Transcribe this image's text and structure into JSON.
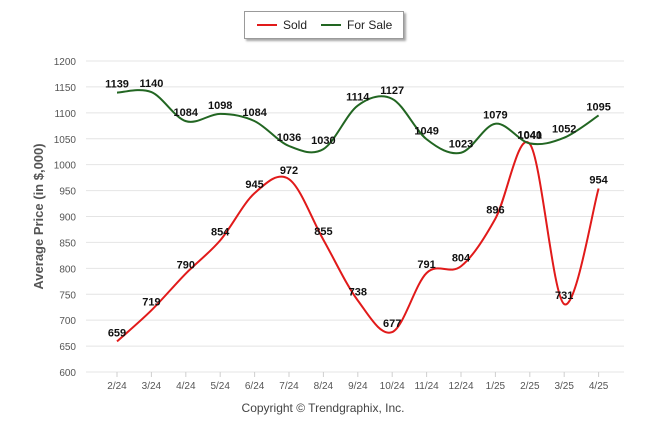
{
  "chart_data": {
    "type": "line",
    "categories": [
      "2/24",
      "3/24",
      "4/24",
      "5/24",
      "6/24",
      "7/24",
      "8/24",
      "9/24",
      "10/24",
      "11/24",
      "12/24",
      "1/25",
      "2/25",
      "3/25",
      "4/25"
    ],
    "series": [
      {
        "name": "Sold",
        "color": "#e11a1a",
        "values": [
          659,
          719,
          790,
          854,
          945,
          972,
          855,
          738,
          677,
          791,
          804,
          896,
          1040,
          731,
          954
        ]
      },
      {
        "name": "For Sale",
        "color": "#226622",
        "values": [
          1139,
          1140,
          1084,
          1098,
          1084,
          1036,
          1030,
          1114,
          1127,
          1049,
          1023,
          1079,
          1041,
          1052,
          1095
        ]
      }
    ],
    "ylabel": "Average Price (in $,000)",
    "xlabel": "",
    "ylim": [
      600,
      1200
    ],
    "yticks": [
      600,
      650,
      700,
      750,
      800,
      850,
      900,
      950,
      1000,
      1050,
      1100,
      1150,
      1200
    ],
    "grid": true,
    "legend_position": "top-center",
    "smooth": true
  },
  "legend": {
    "sold_label": "Sold",
    "for_sale_label": "For Sale"
  },
  "footer": {
    "copyright": "Copyright © Trendgraphix, Inc."
  }
}
